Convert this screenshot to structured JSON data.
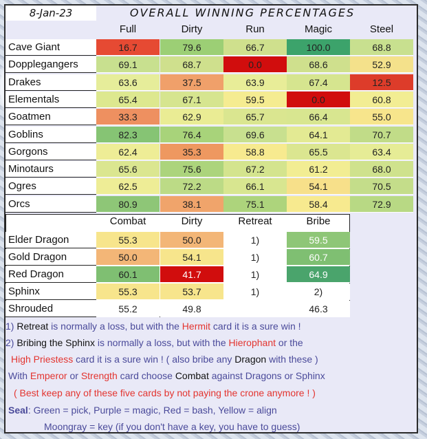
{
  "date": "8-Jan-23",
  "title": "OVERALL WINNING PERCENTAGES",
  "table1": {
    "headers": [
      "Full",
      "Dirty",
      "Run",
      "Magic",
      "Steel"
    ],
    "rows": [
      {
        "name": "Cave Giant",
        "values": [
          "16.7",
          "79.6",
          "66.7",
          "100.0",
          "68.8"
        ],
        "colors": [
          "#e64a33",
          "#9ccf75",
          "#cfe08d",
          "#3ca36b",
          "#c8e08f"
        ]
      },
      {
        "name": "Dopplegangers",
        "values": [
          "69.1",
          "68.7",
          "0.0",
          "68.6",
          "52.9"
        ],
        "colors": [
          "#c8e08f",
          "#cfe08d",
          "#d10d0d",
          "#cfe08d",
          "#f4e18b"
        ]
      },
      {
        "name": "Drakes",
        "values": [
          "63.6",
          "37.5",
          "63.9",
          "67.4",
          "12.5"
        ],
        "colors": [
          "#e6ed9a",
          "#f0a06a",
          "#e8ed98",
          "#d6e58f",
          "#dd3c2a"
        ]
      },
      {
        "name": "Elementals",
        "values": [
          "65.4",
          "67.1",
          "59.5",
          "0.0",
          "60.8"
        ],
        "colors": [
          "#dde88f",
          "#d6e58f",
          "#f5ec91",
          "#d10d0d",
          "#f2ed93"
        ]
      },
      {
        "name": "Goatmen",
        "values": [
          "33.3",
          "62.9",
          "65.7",
          "66.4",
          "55.0"
        ],
        "colors": [
          "#ee9060",
          "#eaec94",
          "#dae690",
          "#d8e690",
          "#f7e58c"
        ]
      },
      {
        "name": "Goblins",
        "values": [
          "82.3",
          "76.4",
          "69.6",
          "64.1",
          "70.7"
        ],
        "colors": [
          "#86c474",
          "#a8d37a",
          "#c8e08f",
          "#e3ea93",
          "#c1dc88"
        ]
      },
      {
        "name": "Gorgons",
        "values": [
          "62.4",
          "35.3",
          "58.8",
          "65.5",
          "63.4"
        ],
        "colors": [
          "#eeed96",
          "#ee9860",
          "#f7ea8f",
          "#dbe690",
          "#e6ec96"
        ]
      },
      {
        "name": "Minotaurs",
        "values": [
          "65.6",
          "75.6",
          "67.2",
          "61.2",
          "68.0"
        ],
        "colors": [
          "#dbe690",
          "#acd47c",
          "#d4e48e",
          "#f2ed93",
          "#cfe28d"
        ]
      },
      {
        "name": "Ogres",
        "values": [
          "62.5",
          "72.2",
          "66.1",
          "54.1",
          "70.5"
        ],
        "colors": [
          "#eeed96",
          "#bcdb86",
          "#d8e690",
          "#f7e08a",
          "#c4dd8a"
        ]
      },
      {
        "name": "Orcs",
        "values": [
          "80.9",
          "38.1",
          "75.1",
          "58.4",
          "72.9"
        ],
        "colors": [
          "#8ec677",
          "#f0a46b",
          "#add47c",
          "#f7ea8f",
          "#b8d984"
        ]
      }
    ]
  },
  "table2": {
    "headers": [
      "Combat",
      "Dirty",
      "Retreat",
      "Bribe"
    ],
    "rows": [
      {
        "name": "Elder Dragon",
        "values": [
          "55.3",
          "50.0",
          "1)",
          "59.5"
        ],
        "colors": [
          "#f7e58c",
          "#f3b677",
          "#ffffff",
          "#8ec677"
        ],
        "light": [
          false,
          false,
          false,
          true
        ]
      },
      {
        "name": "Gold Dragon",
        "values": [
          "50.0",
          "54.1",
          "1)",
          "60.7"
        ],
        "colors": [
          "#f3b677",
          "#f7e58c",
          "#ffffff",
          "#7fbf72"
        ],
        "light": [
          false,
          false,
          false,
          true
        ]
      },
      {
        "name": "Red Dragon",
        "values": [
          "60.1",
          "41.7",
          "1)",
          "64.9"
        ],
        "colors": [
          "#7fbf72",
          "#d10d0d",
          "#ffffff",
          "#4aa46c"
        ],
        "light": [
          false,
          true,
          false,
          true
        ]
      },
      {
        "name": "Sphinx",
        "values": [
          "55.3",
          "53.7",
          "1)",
          "2)"
        ],
        "colors": [
          "#f7e58c",
          "#f7e58c",
          "#ffffff",
          "#ffffff"
        ],
        "light": [
          false,
          false,
          false,
          false
        ]
      },
      {
        "name": "Shrouded",
        "values": [
          "55.2",
          "49.8",
          "",
          "46.3"
        ],
        "colors": [
          "#ffffff",
          "#ffffff",
          "#ffffff",
          "#ffffff"
        ],
        "light": [
          false,
          false,
          false,
          false
        ]
      }
    ]
  },
  "notes": {
    "n1_a": "1) ",
    "n1_b": "Retreat",
    "n1_c": " is normally a loss, but with the ",
    "n1_d": "Hermit",
    "n1_e": " card it is a sure win !",
    "n2_a": "2) ",
    "n2_b": "Bribing the Sphinx",
    "n2_c": " is normally a loss, but with the ",
    "n2_d": "Hierophant",
    "n2_e": " or the",
    "n3_a": "High Priestess",
    "n3_b": " card it is a sure win ! ( also bribe any ",
    "n3_c": "Dragon",
    "n3_d": " with  these )",
    "n4_a": "With ",
    "n4_b": "Emperor",
    "n4_c": " or ",
    "n4_d": "Strength",
    "n4_e": " card choose ",
    "n4_f": "Combat",
    "n4_g": " against Dragons or Sphinx",
    "n5": "( Best keep any of these five cards by not paying the crone anymore ! )",
    "n6_a": "Seal",
    "n6_b": ": Green = pick, Purple = magic, Red = bash, Yellow = align",
    "n7": "Moongray = key (if you don't have a key, you have to guess)"
  }
}
